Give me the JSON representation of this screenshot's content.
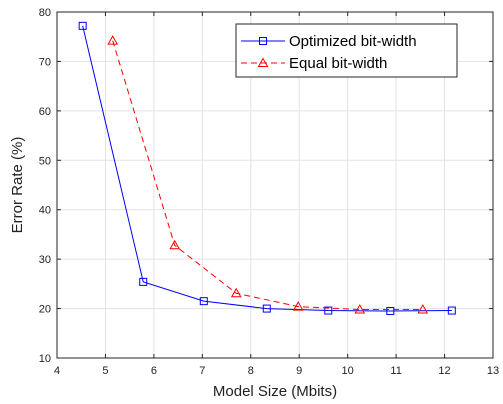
{
  "chart_data": {
    "type": "line",
    "title": "",
    "xlabel": "Model Size (Mbits)",
    "ylabel": "Error Rate (%)",
    "xlim": [
      4,
      13
    ],
    "ylim": [
      10,
      80
    ],
    "xticks": [
      "4",
      "5",
      "6",
      "7",
      "8",
      "9",
      "10",
      "11",
      "12",
      "13"
    ],
    "yticks": [
      "10",
      "20",
      "30",
      "40",
      "50",
      "60",
      "70",
      "80"
    ],
    "grid": true,
    "legend_position": "top-right",
    "series": [
      {
        "name": "Optimized bit-width",
        "color": "#0000ff",
        "line_style": "solid",
        "marker": "square",
        "x": [
          4.53,
          5.78,
          7.03,
          8.33,
          9.6,
          10.88,
          12.15
        ],
        "y": [
          77.2,
          25.4,
          21.5,
          20.0,
          19.6,
          19.5,
          19.6
        ]
      },
      {
        "name": "Equal bit-width",
        "color": "#ff0000",
        "line_style": "dashed",
        "marker": "triangle",
        "x": [
          5.15,
          6.43,
          7.7,
          8.98,
          10.25,
          11.55
        ],
        "y": [
          74.2,
          32.8,
          23.1,
          20.4,
          19.8,
          19.8
        ]
      }
    ]
  }
}
